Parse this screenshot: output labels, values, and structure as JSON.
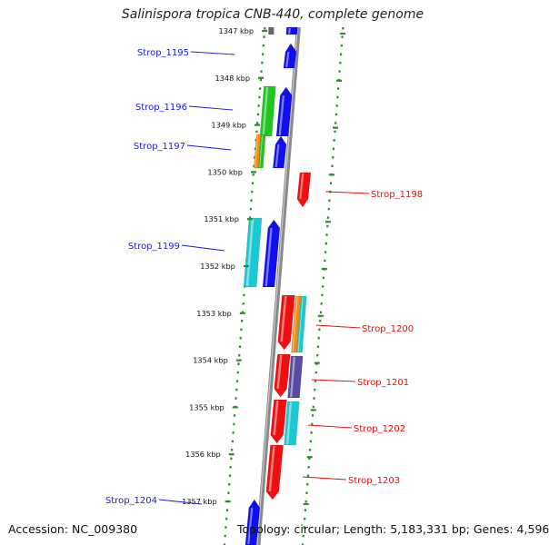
{
  "title": "Salinispora tropica CNB-440, complete genome",
  "accession": "Accession: NC_009380",
  "stats": "Topology: circular; Length: 5,183,331 bp; Genes: 4,596",
  "colors": {
    "backbone": "#8a8a8a",
    "ruler": "#2e8b2e",
    "forward_label": "#1a1ad6",
    "reverse_label": "#e01010"
  },
  "scale": {
    "unit": "kbp",
    "ticks": [
      1347,
      1348,
      1349,
      1350,
      1351,
      1352,
      1353,
      1354,
      1355,
      1356,
      1357
    ]
  },
  "labeled_genes": [
    {
      "name": "Strop_1195",
      "strand": "+"
    },
    {
      "name": "Strop_1196",
      "strand": "+"
    },
    {
      "name": "Strop_1197",
      "strand": "+"
    },
    {
      "name": "Strop_1198",
      "strand": "-"
    },
    {
      "name": "Strop_1199",
      "strand": "+"
    },
    {
      "name": "Strop_1200",
      "strand": "-"
    },
    {
      "name": "Strop_1201",
      "strand": "-"
    },
    {
      "name": "Strop_1202",
      "strand": "-"
    },
    {
      "name": "Strop_1203",
      "strand": "-"
    },
    {
      "name": "Strop_1204",
      "strand": "+"
    }
  ],
  "feature_colors": {
    "forward_cds": "#1010ee",
    "reverse_cds": "#ee1010",
    "green": "#22c322",
    "orange": "#f08c14",
    "cyan": "#1cc8d2",
    "purple": "#5a4aa6"
  }
}
